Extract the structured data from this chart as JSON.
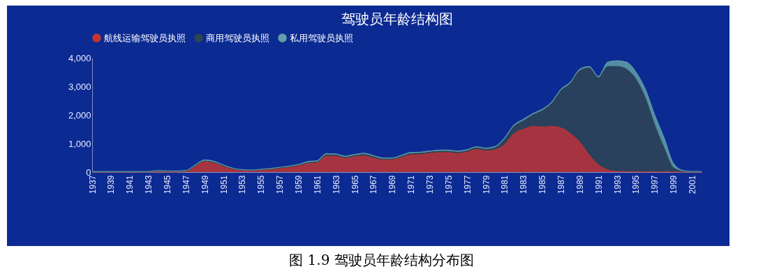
{
  "chart_data": {
    "type": "area",
    "title": "驾驶员年龄结构图",
    "stacked": true,
    "legend": "top",
    "grid": false,
    "categories": [
      "1937",
      null,
      "1939",
      null,
      "1941",
      null,
      "1943",
      null,
      "1945",
      null,
      "1947",
      null,
      "1949",
      null,
      "1951",
      null,
      "1953",
      null,
      "1955",
      null,
      "1957",
      null,
      "1959",
      null,
      "1961",
      null,
      "1963",
      null,
      "1965",
      null,
      "1967",
      null,
      "1969",
      null,
      "1971",
      null,
      "1973",
      null,
      "1975",
      null,
      "1977",
      null,
      "1979",
      null,
      "1981",
      null,
      "1983",
      null,
      "1985",
      null,
      "1987",
      null,
      "1989",
      null,
      "1991",
      null,
      "1993",
      null,
      "1995",
      null,
      "1997",
      null,
      "1999",
      null,
      "2001",
      null
    ],
    "ylim": [
      0,
      4000
    ],
    "yticks": [
      {
        "value": 0,
        "label": "0"
      },
      {
        "value": 1000,
        "label": "1,000"
      },
      {
        "value": 2000,
        "label": "2,000"
      },
      {
        "value": 3000,
        "label": "3,000"
      },
      {
        "value": 4000,
        "label": "4,000"
      }
    ],
    "series": [
      {
        "name": "航线运输驾驶员执照",
        "color": "#c23531",
        "values": [
          0,
          0,
          0,
          0,
          0,
          0,
          0,
          10,
          5,
          5,
          20,
          200,
          370,
          320,
          210,
          110,
          70,
          55,
          80,
          100,
          140,
          170,
          220,
          300,
          320,
          560,
          550,
          480,
          540,
          570,
          490,
          430,
          430,
          510,
          600,
          610,
          650,
          680,
          680,
          650,
          700,
          790,
          740,
          780,
          950,
          1350,
          1500,
          1600,
          1580,
          1600,
          1550,
          1350,
          1050,
          600,
          250,
          80,
          30,
          20,
          10,
          10,
          10,
          10,
          5,
          0,
          0,
          0
        ]
      },
      {
        "name": "商用驾驶员执照",
        "color": "#2f4554",
        "values": [
          10,
          10,
          10,
          10,
          10,
          10,
          10,
          30,
          20,
          20,
          20,
          20,
          20,
          20,
          10,
          10,
          5,
          5,
          5,
          10,
          10,
          15,
          20,
          30,
          40,
          50,
          50,
          40,
          40,
          50,
          50,
          30,
          30,
          40,
          50,
          50,
          50,
          50,
          50,
          50,
          50,
          60,
          60,
          80,
          210,
          250,
          300,
          400,
          570,
          800,
          1300,
          1750,
          2500,
          3050,
          3050,
          3620,
          3670,
          3580,
          3240,
          2590,
          1640,
          840,
          145,
          30,
          15,
          15
        ]
      },
      {
        "name": "私用驾驶员执照",
        "color": "#61a0a8",
        "values": [
          10,
          10,
          10,
          10,
          10,
          10,
          10,
          20,
          15,
          15,
          20,
          30,
          40,
          40,
          30,
          20,
          15,
          15,
          15,
          20,
          20,
          25,
          30,
          40,
          40,
          40,
          40,
          40,
          40,
          40,
          40,
          40,
          40,
          40,
          40,
          40,
          40,
          40,
          40,
          40,
          40,
          40,
          40,
          40,
          40,
          50,
          50,
          50,
          50,
          50,
          50,
          50,
          50,
          50,
          50,
          150,
          200,
          250,
          250,
          300,
          350,
          350,
          150,
          30,
          15,
          15
        ]
      }
    ],
    "annotations": [
      "图 1.9 驾驶员年龄结构分布图"
    ]
  }
}
